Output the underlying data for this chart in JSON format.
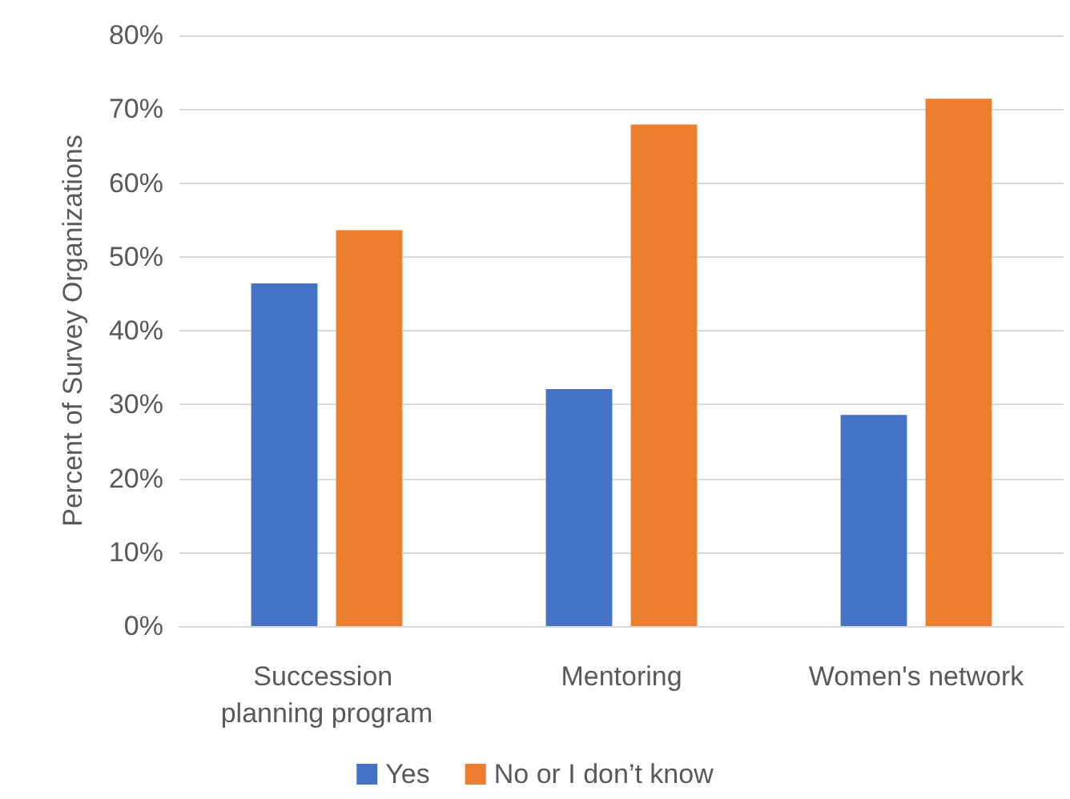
{
  "chart_data": {
    "type": "bar",
    "ylabel": "Percent of Survey Organizations",
    "categories": [
      "Succession planning program",
      "Mentoring",
      "Women's network"
    ],
    "series": [
      {
        "name": "Yes",
        "color": "#4472c4",
        "values": [
          46.4,
          32.1,
          28.6
        ]
      },
      {
        "name": "No or I don’t know",
        "color": "#ed7d31",
        "values": [
          53.6,
          67.9,
          71.4
        ]
      }
    ],
    "ylim": [
      0,
      80
    ],
    "yticks": [
      {
        "value": 0,
        "label": "0%"
      },
      {
        "value": 10,
        "label": "10%"
      },
      {
        "value": 20,
        "label": "20%"
      },
      {
        "value": 30,
        "label": "30%"
      },
      {
        "value": 40,
        "label": "40%"
      },
      {
        "value": 50,
        "label": "50%"
      },
      {
        "value": 60,
        "label": "60%"
      },
      {
        "value": 70,
        "label": "70%"
      },
      {
        "value": 80,
        "label": "80%"
      }
    ],
    "grid": "y",
    "legend": "bottom"
  }
}
